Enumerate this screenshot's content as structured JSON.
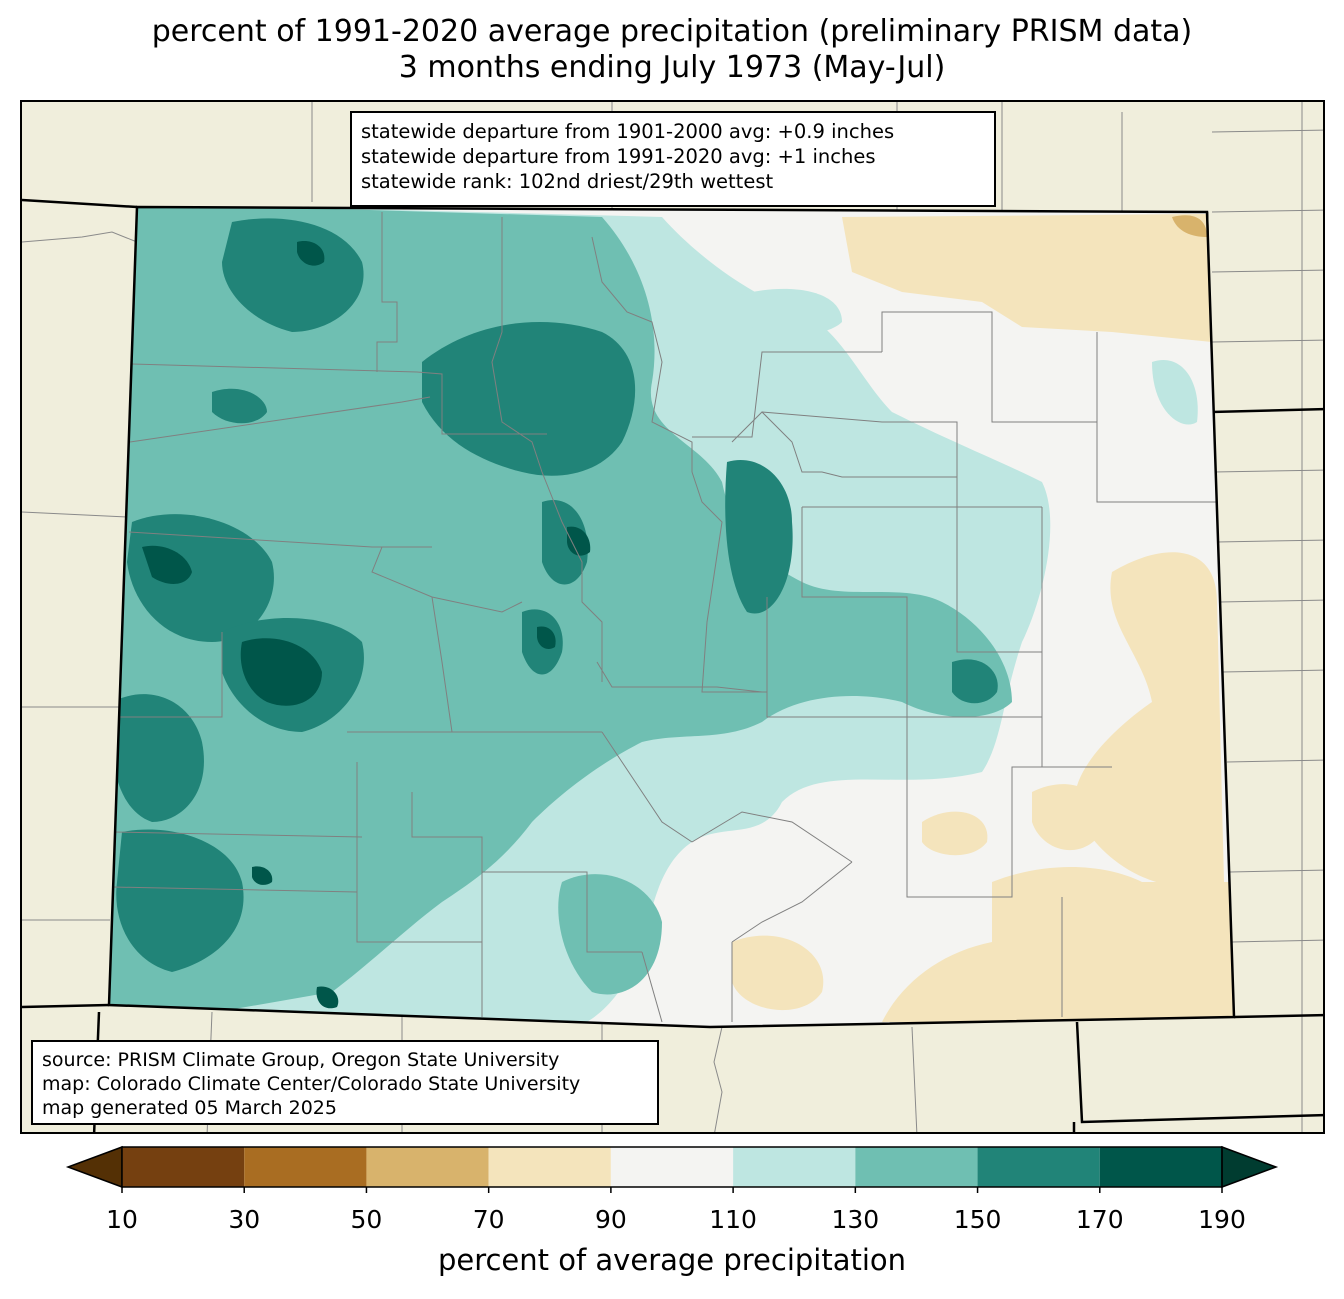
{
  "title": {
    "line1": "percent of 1991-2020 average precipitation (preliminary PRISM data)",
    "line2": "3 months ending July 1973 (May-Jul)"
  },
  "stats": {
    "line1": "statewide departure from 1901-2000 avg: +0.9 inches",
    "line2": "statewide departure from 1991-2020 avg: +1 inches",
    "line3": "statewide rank: 102nd driest/29th wettest"
  },
  "source": {
    "line1": "source: PRISM Climate Group, Oregon State University",
    "line2": "map: Colorado Climate Center/Colorado State University",
    "line3": "map generated 05 March 2025"
  },
  "colorbar": {
    "label": "percent of average precipitation",
    "ticks": [
      "10",
      "30",
      "50",
      "70",
      "90",
      "110",
      "130",
      "150",
      "170",
      "190"
    ],
    "under_color": "#543005",
    "over_color": "#003c30",
    "colors": [
      "#754010",
      "#a96d22",
      "#d8b36c",
      "#f4e4bc",
      "#f4f4f2",
      "#bee6e1",
      "#6fbfb2",
      "#218478",
      "#00564a"
    ]
  },
  "map_colors": {
    "background": "#f0eedc",
    "pct_70_90": "#f4e4bc",
    "pct_90_110": "#f4f4f2",
    "pct_110_130": "#bee6e1",
    "pct_130_150": "#6fbfb2",
    "pct_150_170": "#218478",
    "pct_170_190": "#00564a"
  }
}
